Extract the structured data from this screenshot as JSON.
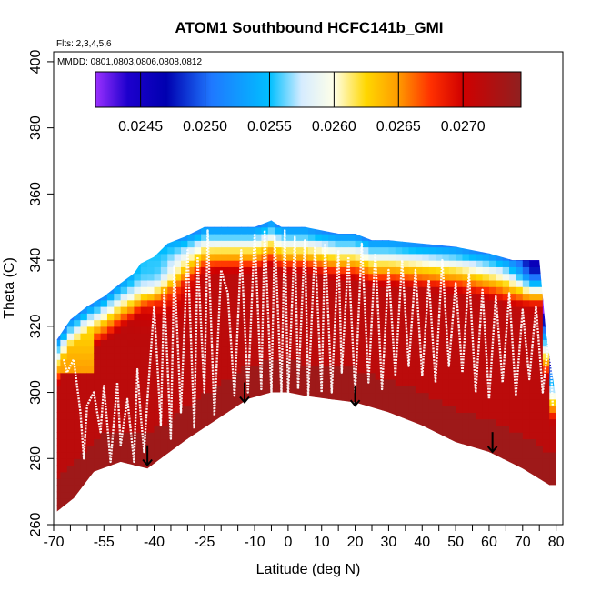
{
  "chart_data": {
    "type": "heatmap",
    "title": "ATOM1 Southbound HCFC141b_GMI",
    "annotations": {
      "flights": "Flts: 2,3,4,5,6",
      "dates": "MMDD: 0801,0803,0806,0808,0812"
    },
    "xlabel": "Latitude (deg N)",
    "ylabel": "Theta (C)",
    "xlim": [
      -70,
      82
    ],
    "ylim": [
      260,
      403
    ],
    "x_ticks": [
      -70,
      -55,
      -40,
      -25,
      -10,
      0,
      10,
      20,
      30,
      40,
      50,
      60,
      70,
      80
    ],
    "x_tick_labels": [
      "-70",
      "-55",
      "-40",
      "-25",
      "-10",
      "0",
      "10",
      "20",
      "30",
      "40",
      "50",
      "60",
      "70",
      "80"
    ],
    "x_minor_ticks": [
      -65,
      -60,
      -50,
      -45,
      -35,
      -30,
      -20,
      -15,
      -5,
      5,
      15,
      25,
      35,
      45,
      55,
      65,
      75
    ],
    "y_ticks": [
      260,
      280,
      300,
      320,
      340,
      360,
      380,
      400
    ],
    "y_tick_labels": [
      "260",
      "280",
      "300",
      "320",
      "340",
      "360",
      "380",
      "400"
    ],
    "colorbar": {
      "ticks": [
        0.0245,
        0.025,
        0.0255,
        0.026,
        0.0265,
        0.027
      ],
      "tick_labels": [
        "0.0245",
        "0.0250",
        "0.0255",
        "0.0260",
        "0.0265",
        "0.0270"
      ],
      "range": [
        0.02415,
        0.02745
      ],
      "stops": [
        {
          "v": 0.02415,
          "color": "#9b30ff"
        },
        {
          "v": 0.0244,
          "color": "#1d00cd"
        },
        {
          "v": 0.0247,
          "color": "#0000b0"
        },
        {
          "v": 0.02505,
          "color": "#1f78ff"
        },
        {
          "v": 0.0255,
          "color": "#00bfff"
        },
        {
          "v": 0.02575,
          "color": "#d6ecff"
        },
        {
          "v": 0.026,
          "color": "#ffffe8"
        },
        {
          "v": 0.02625,
          "color": "#ffd700"
        },
        {
          "v": 0.0265,
          "color": "#ff9a00"
        },
        {
          "v": 0.02675,
          "color": "#ff3000"
        },
        {
          "v": 0.027,
          "color": "#d00000"
        },
        {
          "v": 0.02745,
          "color": "#902020"
        }
      ]
    },
    "field": {
      "bottom_boundary": [
        [
          -69,
          264
        ],
        [
          -64,
          268
        ],
        [
          -58,
          276
        ],
        [
          -50,
          279
        ],
        [
          -42,
          277
        ],
        [
          -38,
          280
        ],
        [
          -30,
          286
        ],
        [
          -21,
          292
        ],
        [
          -12,
          298
        ],
        [
          -5,
          300
        ],
        [
          0,
          300
        ],
        [
          5,
          299
        ],
        [
          12,
          298
        ],
        [
          20,
          297
        ],
        [
          30,
          294
        ],
        [
          40,
          290
        ],
        [
          50,
          285
        ],
        [
          60,
          282
        ],
        [
          70,
          277
        ],
        [
          78,
          272
        ],
        [
          80,
          272
        ]
      ],
      "top_boundary": [
        [
          -69,
          316
        ],
        [
          -65,
          322
        ],
        [
          -60,
          326
        ],
        [
          -55,
          329
        ],
        [
          -50,
          333
        ],
        [
          -46,
          336
        ],
        [
          -44,
          339
        ],
        [
          -40,
          341
        ],
        [
          -36,
          345
        ],
        [
          -31,
          347
        ],
        [
          -25,
          350
        ],
        [
          -10,
          350
        ],
        [
          -5,
          352
        ],
        [
          -2,
          350
        ],
        [
          5,
          350
        ],
        [
          10,
          349
        ],
        [
          15,
          348
        ],
        [
          20,
          348
        ],
        [
          25,
          346
        ],
        [
          30,
          346
        ],
        [
          40,
          345
        ],
        [
          50,
          344
        ],
        [
          60,
          342
        ],
        [
          67,
          340
        ],
        [
          75,
          340
        ],
        [
          77,
          318
        ],
        [
          80,
          298
        ],
        [
          80,
          272
        ]
      ],
      "blue_core_lat": -41,
      "blue_core_theta": 339,
      "blue_core_value": 0.02555,
      "background_value": 0.02715,
      "lower_value": 0.02735
    },
    "flight_track": {
      "lon_points": [
        -67,
        -66,
        -64,
        -62,
        -61,
        -60,
        -58,
        -56,
        -55,
        -53,
        -51,
        -50,
        -48,
        -46,
        -45,
        -44,
        -43,
        -42,
        -40,
        -38,
        -37,
        -35,
        -34,
        -32,
        -30,
        -28,
        -27,
        -25,
        -24,
        -22,
        -20,
        -18,
        -16,
        -14,
        -12,
        -10,
        -8,
        -7,
        -5,
        -4,
        -2,
        -1,
        0,
        2,
        3,
        5,
        6,
        8,
        10,
        11,
        13,
        15,
        16,
        18,
        20,
        22,
        24,
        26,
        28,
        30,
        32,
        34,
        36,
        38,
        40,
        42,
        44,
        46,
        48,
        50,
        52,
        54,
        56,
        58,
        60,
        62,
        64,
        66,
        68,
        70,
        72,
        74,
        76,
        78,
        79
      ],
      "theta_points": [
        310,
        306,
        310,
        294,
        280,
        296,
        300,
        288,
        302,
        279,
        303,
        284,
        298,
        279,
        307,
        293,
        282,
        298,
        326,
        290,
        331,
        286,
        338,
        294,
        343,
        289,
        341,
        300,
        349,
        293,
        337,
        330,
        299,
        343,
        300,
        348,
        301,
        349,
        300,
        347,
        300,
        349,
        299,
        347,
        301,
        346,
        299,
        344,
        300,
        345,
        300,
        343,
        306,
        341,
        300,
        345,
        303,
        342,
        301,
        337,
        305,
        340,
        308,
        337,
        305,
        334,
        303,
        340,
        308,
        333,
        306,
        336,
        300,
        331,
        298,
        329,
        303,
        330,
        299,
        325,
        304,
        326,
        300,
        318,
        296
      ]
    },
    "arrows": [
      {
        "lat": -42,
        "theta": 284
      },
      {
        "lat": -13,
        "theta": 303
      },
      {
        "lat": 20,
        "theta": 302
      },
      {
        "lat": 61,
        "theta": 288
      }
    ]
  }
}
